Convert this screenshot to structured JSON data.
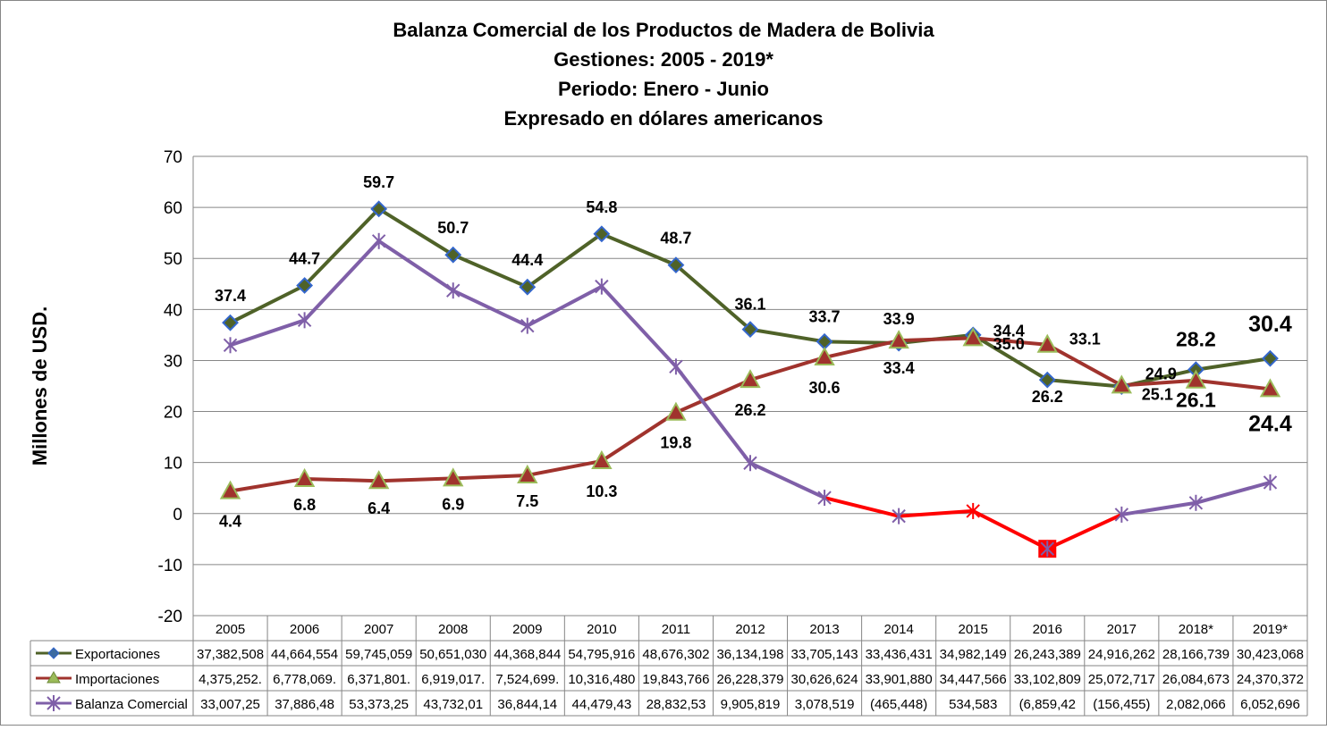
{
  "chart_data": {
    "type": "line",
    "title_lines": [
      "Balanza Comercial de los Productos de Madera de Bolivia",
      "Gestiones: 2005 - 2019*",
      "Periodo: Enero - Junio",
      "Expresado en dólares americanos"
    ],
    "ylabel": "Millones de USD.",
    "xlabel": "",
    "ylim": [
      -20,
      70
    ],
    "yticks": [
      -20,
      -10,
      0,
      10,
      20,
      30,
      40,
      50,
      60,
      70
    ],
    "grid": true,
    "legend_position": "data table below chart",
    "categories": [
      "2005",
      "2006",
      "2007",
      "2008",
      "2009",
      "2010",
      "2011",
      "2012",
      "2013",
      "2014",
      "2015",
      "2016",
      "2017",
      "2018*",
      "2019*"
    ],
    "series": [
      {
        "name": "Exportaciones",
        "color": "#4F6228",
        "marker": "diamond",
        "marker_color": "#3366CC",
        "values": [
          37.4,
          44.7,
          59.7,
          50.7,
          44.4,
          54.8,
          48.7,
          36.1,
          33.7,
          33.4,
          35.0,
          26.2,
          24.9,
          28.2,
          30.4
        ],
        "data_labels": [
          "37.4",
          "44.7",
          "59.7",
          "50.7",
          "44.4",
          "54.8",
          "48.7",
          "36.1",
          "33.7",
          "33.4",
          "35.0",
          "26.2",
          "24.9",
          "28.2",
          "30.4"
        ],
        "table_values": [
          "37,382,508",
          "44,664,554",
          "59,745,059",
          "50,651,030",
          "44,368,844",
          "54,795,916",
          "48,676,302",
          "36,134,198",
          "33,705,143",
          "33,436,431",
          "34,982,149",
          "26,243,389",
          "24,916,262",
          "28,166,739",
          "30,423,068"
        ]
      },
      {
        "name": "Importaciones",
        "color": "#A0332D",
        "marker": "triangle",
        "marker_color": "#9BBB59",
        "values": [
          4.4,
          6.8,
          6.4,
          6.9,
          7.5,
          10.3,
          19.8,
          26.2,
          30.6,
          33.9,
          34.4,
          33.1,
          25.1,
          26.1,
          24.4
        ],
        "data_labels": [
          "4.4",
          "6.8",
          "6.4",
          "6.9",
          "7.5",
          "10.3",
          "19.8",
          "26.2",
          "30.6",
          "33.9",
          "34.4",
          "33.1",
          "25.1",
          "26.1",
          "24.4"
        ],
        "table_values": [
          "4,375,252.",
          "6,778,069.",
          "6,371,801.",
          "6,919,017.",
          "7,524,699.",
          "10,316,480",
          "19,843,766",
          "26,228,379",
          "30,626,624",
          "33,901,880",
          "34,447,566",
          "33,102,809",
          "25,072,717",
          "26,084,673",
          "24,370,372"
        ]
      },
      {
        "name": "Balanza Comercial",
        "color": "#7F5FA8",
        "negative_color": "#FF0000",
        "marker": "asterisk",
        "values": [
          33.0,
          37.9,
          53.4,
          43.7,
          36.8,
          44.5,
          28.8,
          9.9,
          3.1,
          -0.5,
          0.5,
          -6.9,
          -0.2,
          2.1,
          6.1
        ],
        "table_values": [
          "33,007,25",
          "37,886,48",
          "53,373,25",
          "43,732,01",
          "36,844,14",
          "44,479,43",
          "28,832,53",
          "9,905,819",
          "3,078,519",
          "(465,448)",
          "534,583",
          "(6,859,42",
          "(156,455)",
          "2,082,066",
          "6,052,696"
        ]
      }
    ]
  }
}
